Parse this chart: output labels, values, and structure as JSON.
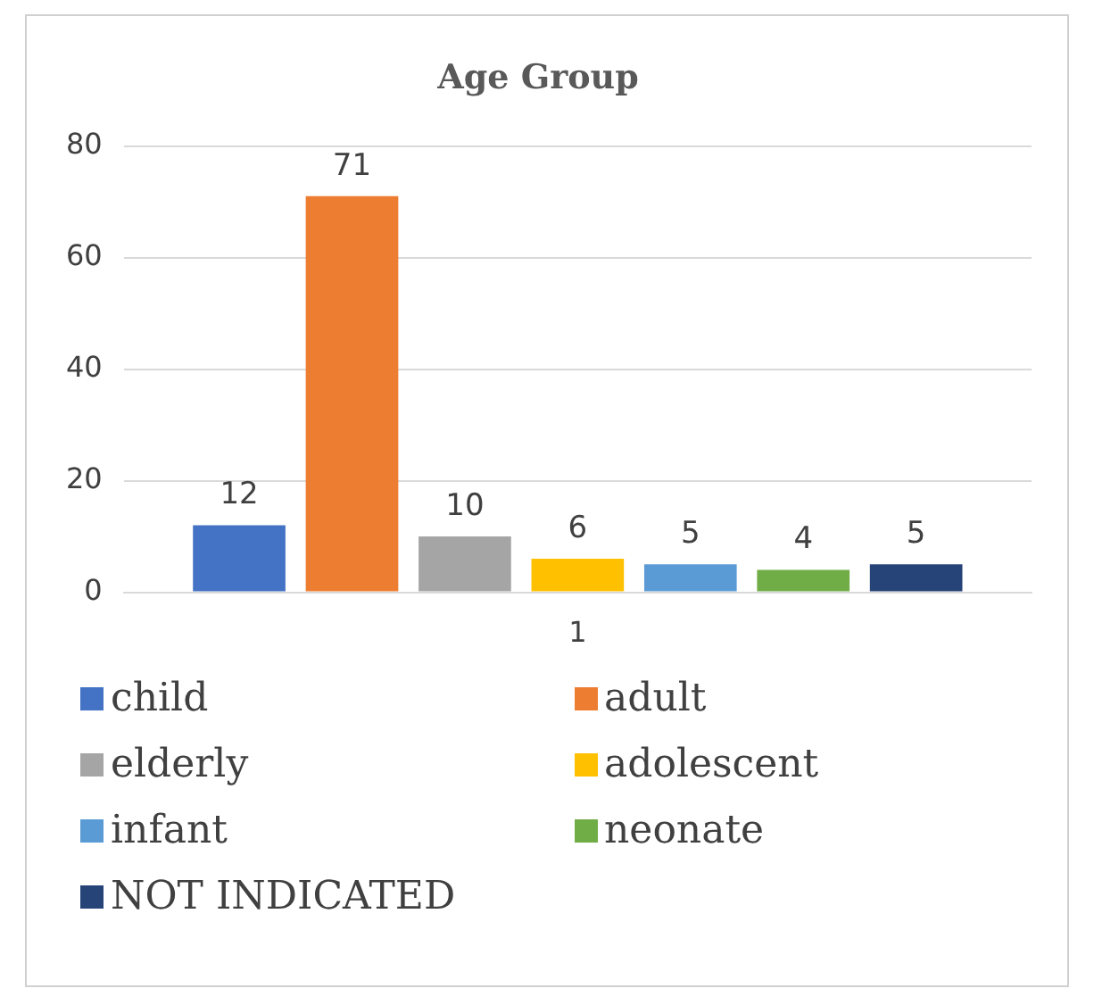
{
  "chart_data": {
    "type": "bar",
    "title": "Age Group",
    "categories": [
      "1"
    ],
    "series": [
      {
        "name": "child",
        "color": "#4472c4",
        "values": [
          12
        ]
      },
      {
        "name": "adult",
        "color": "#ed7d31",
        "values": [
          71
        ]
      },
      {
        "name": "elderly",
        "color": "#a5a5a5",
        "values": [
          10
        ]
      },
      {
        "name": "adolescent",
        "color": "#ffc000",
        "values": [
          6
        ]
      },
      {
        "name": "infant",
        "color": "#5b9bd5",
        "values": [
          5
        ]
      },
      {
        "name": "neonate",
        "color": "#70ad47",
        "values": [
          4
        ]
      },
      {
        "name": "NOT INDICATED",
        "color": "#264478",
        "values": [
          5
        ]
      }
    ],
    "ylim": [
      0,
      80
    ],
    "yticks": [
      0,
      20,
      40,
      60,
      80
    ],
    "grid": "y",
    "data_labels": true,
    "legend": "bottom"
  }
}
